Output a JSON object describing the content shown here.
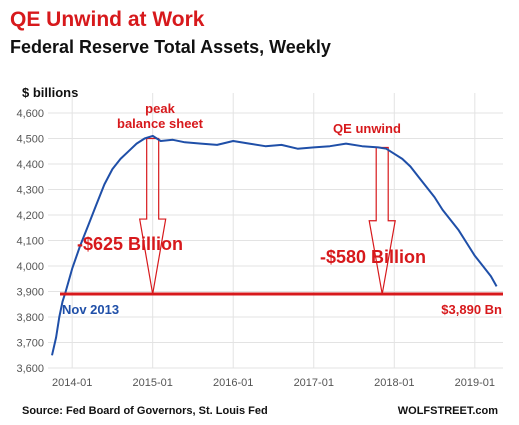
{
  "header": {
    "title": "QE Unwind at Work",
    "subtitle": "Federal Reserve Total Assets, Weekly"
  },
  "chart_data": {
    "type": "line",
    "ylabel": "$ billions",
    "ylim": [
      3600,
      4600
    ],
    "yticks": [
      "4,600",
      "4,500",
      "4,400",
      "4,300",
      "4,200",
      "4,100",
      "4,000",
      "3,900",
      "3,800",
      "3,700",
      "3,600"
    ],
    "ytick_values": [
      4600,
      4500,
      4400,
      4300,
      4200,
      4100,
      4000,
      3900,
      3800,
      3700,
      3600
    ],
    "xlim": [
      2013.7,
      2019.35
    ],
    "xticks": [
      "2014-01",
      "2015-01",
      "2016-01",
      "2017-01",
      "2018-01",
      "2019-01"
    ],
    "xtick_values": [
      2014.0,
      2015.0,
      2016.0,
      2017.0,
      2018.0,
      2019.0
    ],
    "grid": true,
    "series": [
      {
        "color": "#1f4fa8",
        "points": [
          [
            2013.75,
            3650
          ],
          [
            2013.8,
            3720
          ],
          [
            2013.84,
            3800
          ],
          [
            2013.88,
            3860
          ],
          [
            2013.92,
            3900
          ],
          [
            2014.0,
            3990
          ],
          [
            2014.1,
            4080
          ],
          [
            2014.2,
            4160
          ],
          [
            2014.3,
            4240
          ],
          [
            2014.4,
            4320
          ],
          [
            2014.5,
            4380
          ],
          [
            2014.6,
            4420
          ],
          [
            2014.7,
            4450
          ],
          [
            2014.8,
            4480
          ],
          [
            2014.9,
            4500
          ],
          [
            2015.0,
            4510
          ],
          [
            2015.1,
            4490
          ],
          [
            2015.25,
            4495
          ],
          [
            2015.4,
            4485
          ],
          [
            2015.6,
            4480
          ],
          [
            2015.8,
            4475
          ],
          [
            2016.0,
            4490
          ],
          [
            2016.2,
            4480
          ],
          [
            2016.4,
            4470
          ],
          [
            2016.6,
            4475
          ],
          [
            2016.8,
            4460
          ],
          [
            2017.0,
            4465
          ],
          [
            2017.2,
            4470
          ],
          [
            2017.4,
            4480
          ],
          [
            2017.6,
            4470
          ],
          [
            2017.8,
            4465
          ],
          [
            2017.9,
            4460
          ],
          [
            2018.0,
            4440
          ],
          [
            2018.1,
            4420
          ],
          [
            2018.2,
            4390
          ],
          [
            2018.3,
            4350
          ],
          [
            2018.4,
            4310
          ],
          [
            2018.5,
            4270
          ],
          [
            2018.6,
            4220
          ],
          [
            2018.7,
            4180
          ],
          [
            2018.8,
            4140
          ],
          [
            2018.9,
            4090
          ],
          [
            2019.0,
            4040
          ],
          [
            2019.1,
            4000
          ],
          [
            2019.2,
            3960
          ],
          [
            2019.27,
            3920
          ]
        ]
      }
    ],
    "reference_line": {
      "value": 3890,
      "color": "#d7191c"
    },
    "arrows": [
      {
        "x": 2015.0,
        "y_from": 4500,
        "y_to": 3890,
        "color": "#d7191c"
      },
      {
        "x": 2017.85,
        "y_from": 4465,
        "y_to": 3890,
        "color": "#d7191c"
      }
    ],
    "annotations": {
      "peak": [
        "peak",
        "balance sheet"
      ],
      "unwind": "QE unwind",
      "drop1": "-$625 Billion",
      "drop2": "-$580 Billion",
      "start": "Nov 2013",
      "end": "$3,890 Bn"
    }
  },
  "footer": {
    "source": "Source: Fed Board of Governors, St. Louis Fed",
    "brand": "WOLFSTREET.com"
  }
}
